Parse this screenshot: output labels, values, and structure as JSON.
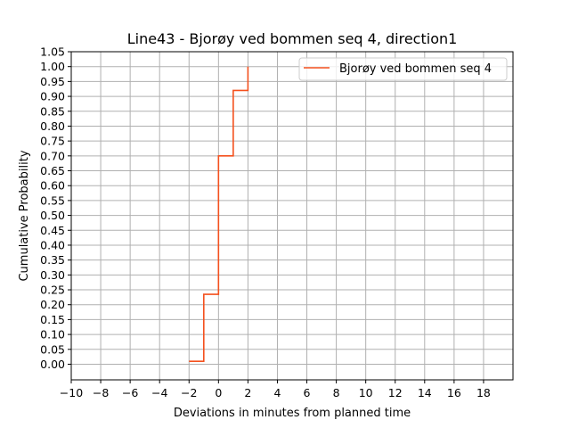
{
  "chart_data": {
    "type": "line",
    "title": "Line43 - Bjorøy ved bommen seq 4, direction1",
    "xlabel": "Deviations in minutes from planned time",
    "ylabel": "Cumulative Probability",
    "xlim": [
      -10,
      20
    ],
    "ylim": [
      -0.0525,
      1.05
    ],
    "xticks": [
      -10,
      -8,
      -6,
      -4,
      -2,
      0,
      2,
      4,
      6,
      8,
      10,
      12,
      14,
      16,
      18
    ],
    "xtick_labels": [
      "−10",
      "−8",
      "−6",
      "−4",
      "−2",
      "0",
      "2",
      "4",
      "6",
      "8",
      "10",
      "12",
      "14",
      "16",
      "18"
    ],
    "yticks": [
      0,
      0.05,
      0.1,
      0.15,
      0.2,
      0.25,
      0.3,
      0.35,
      0.4,
      0.45,
      0.5,
      0.55,
      0.6,
      0.65,
      0.7,
      0.75,
      0.8,
      0.85,
      0.9,
      0.95,
      1.0,
      1.05
    ],
    "ytick_labels": [
      "0.00",
      "0.05",
      "0.10",
      "0.15",
      "0.20",
      "0.25",
      "0.30",
      "0.35",
      "0.40",
      "0.45",
      "0.50",
      "0.55",
      "0.60",
      "0.65",
      "0.70",
      "0.75",
      "0.80",
      "0.85",
      "0.90",
      "0.95",
      "1.00",
      "1.05"
    ],
    "grid": true,
    "legend_position": "top-right",
    "series": [
      {
        "name": "Bjorøy ved bommen seq 4",
        "color": "#f4511e",
        "step": "post",
        "x": [
          -2,
          -1,
          0,
          1,
          2
        ],
        "y": [
          0.01,
          0.235,
          0.7,
          0.92,
          1.0
        ]
      }
    ]
  }
}
